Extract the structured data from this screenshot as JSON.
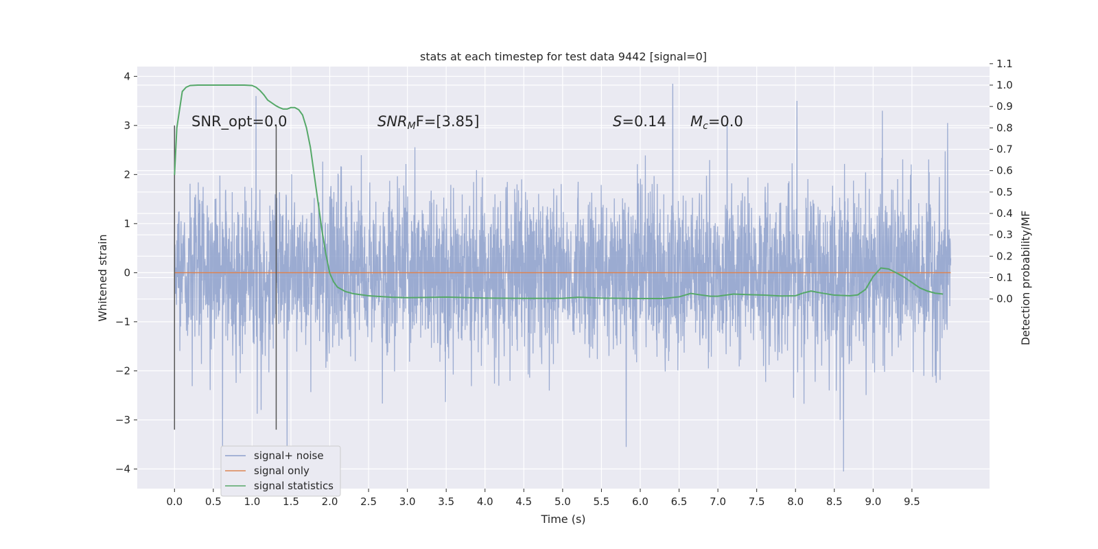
{
  "chart_data": {
    "type": "line",
    "title": "stats at each timestep for test data 9442 [signal=0]",
    "xlabel": "Time (s)",
    "ylabel": "Whitened strain",
    "y2label": "Detection probability/MF",
    "xlim": [
      -0.48,
      10.5
    ],
    "ylim": [
      -4.4,
      4.2
    ],
    "y2lim": [
      -0.8866,
      1.0866
    ],
    "x_ticks": [
      0.0,
      0.5,
      1.0,
      1.5,
      2.0,
      2.5,
      3.0,
      3.5,
      4.0,
      4.5,
      5.0,
      5.5,
      6.0,
      6.5,
      7.0,
      7.5,
      8.0,
      8.5,
      9.0,
      9.5
    ],
    "x_tick_labels": [
      "0.0",
      "0.5",
      "1.0",
      "1.5",
      "2.0",
      "2.5",
      "3.0",
      "3.5",
      "4.0",
      "4.5",
      "5.0",
      "5.5",
      "6.0",
      "6.5",
      "7.0",
      "7.5",
      "8.0",
      "8.5",
      "9.0",
      "9.5"
    ],
    "y_ticks": [
      -4,
      -3,
      -2,
      -1,
      0,
      1,
      2,
      3,
      4
    ],
    "y_tick_labels": [
      "−4",
      "−3",
      "−2",
      "−1",
      "0",
      "1",
      "2",
      "3",
      "4"
    ],
    "y2_ticks": [
      0.0,
      0.1,
      0.2,
      0.3,
      0.4,
      0.5,
      0.6,
      0.7,
      0.8,
      0.9,
      1.0,
      1.1
    ],
    "y2_tick_labels": [
      "0.0",
      "0.1",
      "0.2",
      "0.3",
      "0.4",
      "0.5",
      "0.6",
      "0.7",
      "0.8",
      "0.9",
      "1.0",
      "1.1"
    ],
    "grid": true,
    "legend_position": "lower-left",
    "series": [
      {
        "name": "signal+ noise",
        "color": "#8da0cb",
        "axis": "left",
        "description_values": "dense noisy whitened strain, mostly within [-2, 2], extremes near -4.05 and 3.85",
        "x_range": [
          0.0,
          10.0
        ],
        "peaks": [
          [
            1.05,
            3.6
          ],
          [
            6.42,
            3.85
          ],
          [
            7.12,
            3.05
          ],
          [
            8.02,
            3.5
          ],
          [
            9.12,
            3.3
          ],
          [
            9.96,
            3.05
          ],
          [
            0.62,
            -3.6
          ],
          [
            1.45,
            -3.7
          ],
          [
            5.82,
            -3.55
          ],
          [
            8.62,
            -4.05
          ]
        ]
      },
      {
        "name": "signal only",
        "color": "#dd8452",
        "axis": "left",
        "x": [
          0.0,
          10.0
        ],
        "values": [
          0.0,
          0.0
        ]
      },
      {
        "name": "signal statistics",
        "color": "#55a868",
        "axis": "right",
        "x": [
          0.0,
          0.03,
          0.1,
          0.15,
          0.2,
          0.3,
          0.5,
          0.7,
          0.9,
          1.0,
          1.05,
          1.1,
          1.15,
          1.2,
          1.3,
          1.35,
          1.4,
          1.45,
          1.5,
          1.55,
          1.6,
          1.65,
          1.7,
          1.75,
          1.8,
          1.85,
          1.9,
          1.95,
          2.0,
          2.05,
          2.1,
          2.2,
          2.3,
          2.5,
          2.8,
          3.0,
          3.2,
          3.5,
          4.0,
          4.5,
          5.0,
          5.2,
          5.5,
          6.0,
          6.3,
          6.5,
          6.65,
          6.8,
          6.9,
          7.0,
          7.2,
          7.4,
          7.6,
          7.8,
          8.0,
          8.1,
          8.2,
          8.3,
          8.5,
          8.7,
          8.8,
          8.9,
          9.0,
          9.1,
          9.2,
          9.3,
          9.4,
          9.5,
          9.6,
          9.7,
          9.8,
          9.9
        ],
        "values": [
          0.58,
          0.8,
          0.97,
          0.99,
          0.998,
          1.0,
          1.0,
          1.0,
          1.0,
          0.998,
          0.99,
          0.975,
          0.955,
          0.93,
          0.905,
          0.895,
          0.888,
          0.888,
          0.895,
          0.895,
          0.885,
          0.86,
          0.8,
          0.71,
          0.58,
          0.45,
          0.32,
          0.21,
          0.12,
          0.08,
          0.055,
          0.035,
          0.025,
          0.015,
          0.008,
          0.006,
          0.007,
          0.009,
          0.004,
          0.003,
          0.003,
          0.008,
          0.004,
          0.002,
          0.002,
          0.01,
          0.026,
          0.018,
          0.013,
          0.013,
          0.023,
          0.02,
          0.018,
          0.014,
          0.015,
          0.028,
          0.037,
          0.03,
          0.018,
          0.015,
          0.019,
          0.044,
          0.105,
          0.145,
          0.14,
          0.122,
          0.102,
          0.077,
          0.052,
          0.037,
          0.027,
          0.023
        ]
      }
    ],
    "vlines": [
      {
        "x": 0.0,
        "y_from": -3.2,
        "y_to": 3.0,
        "color": "#555555"
      },
      {
        "x": 1.31,
        "y_from": -3.2,
        "y_to": 3.0,
        "color": "#555555"
      }
    ],
    "annotations": {
      "snr_opt": "SNR_opt=0.0",
      "snr_mf_base": "SNR",
      "snr_mf_sub": "M",
      "snr_mf_rest": "F=[3.85]",
      "s_symbol": "S",
      "s_value": "=0.14",
      "mc_symbol": "M",
      "mc_sub": "c",
      "mc_value": "=0.0"
    }
  }
}
